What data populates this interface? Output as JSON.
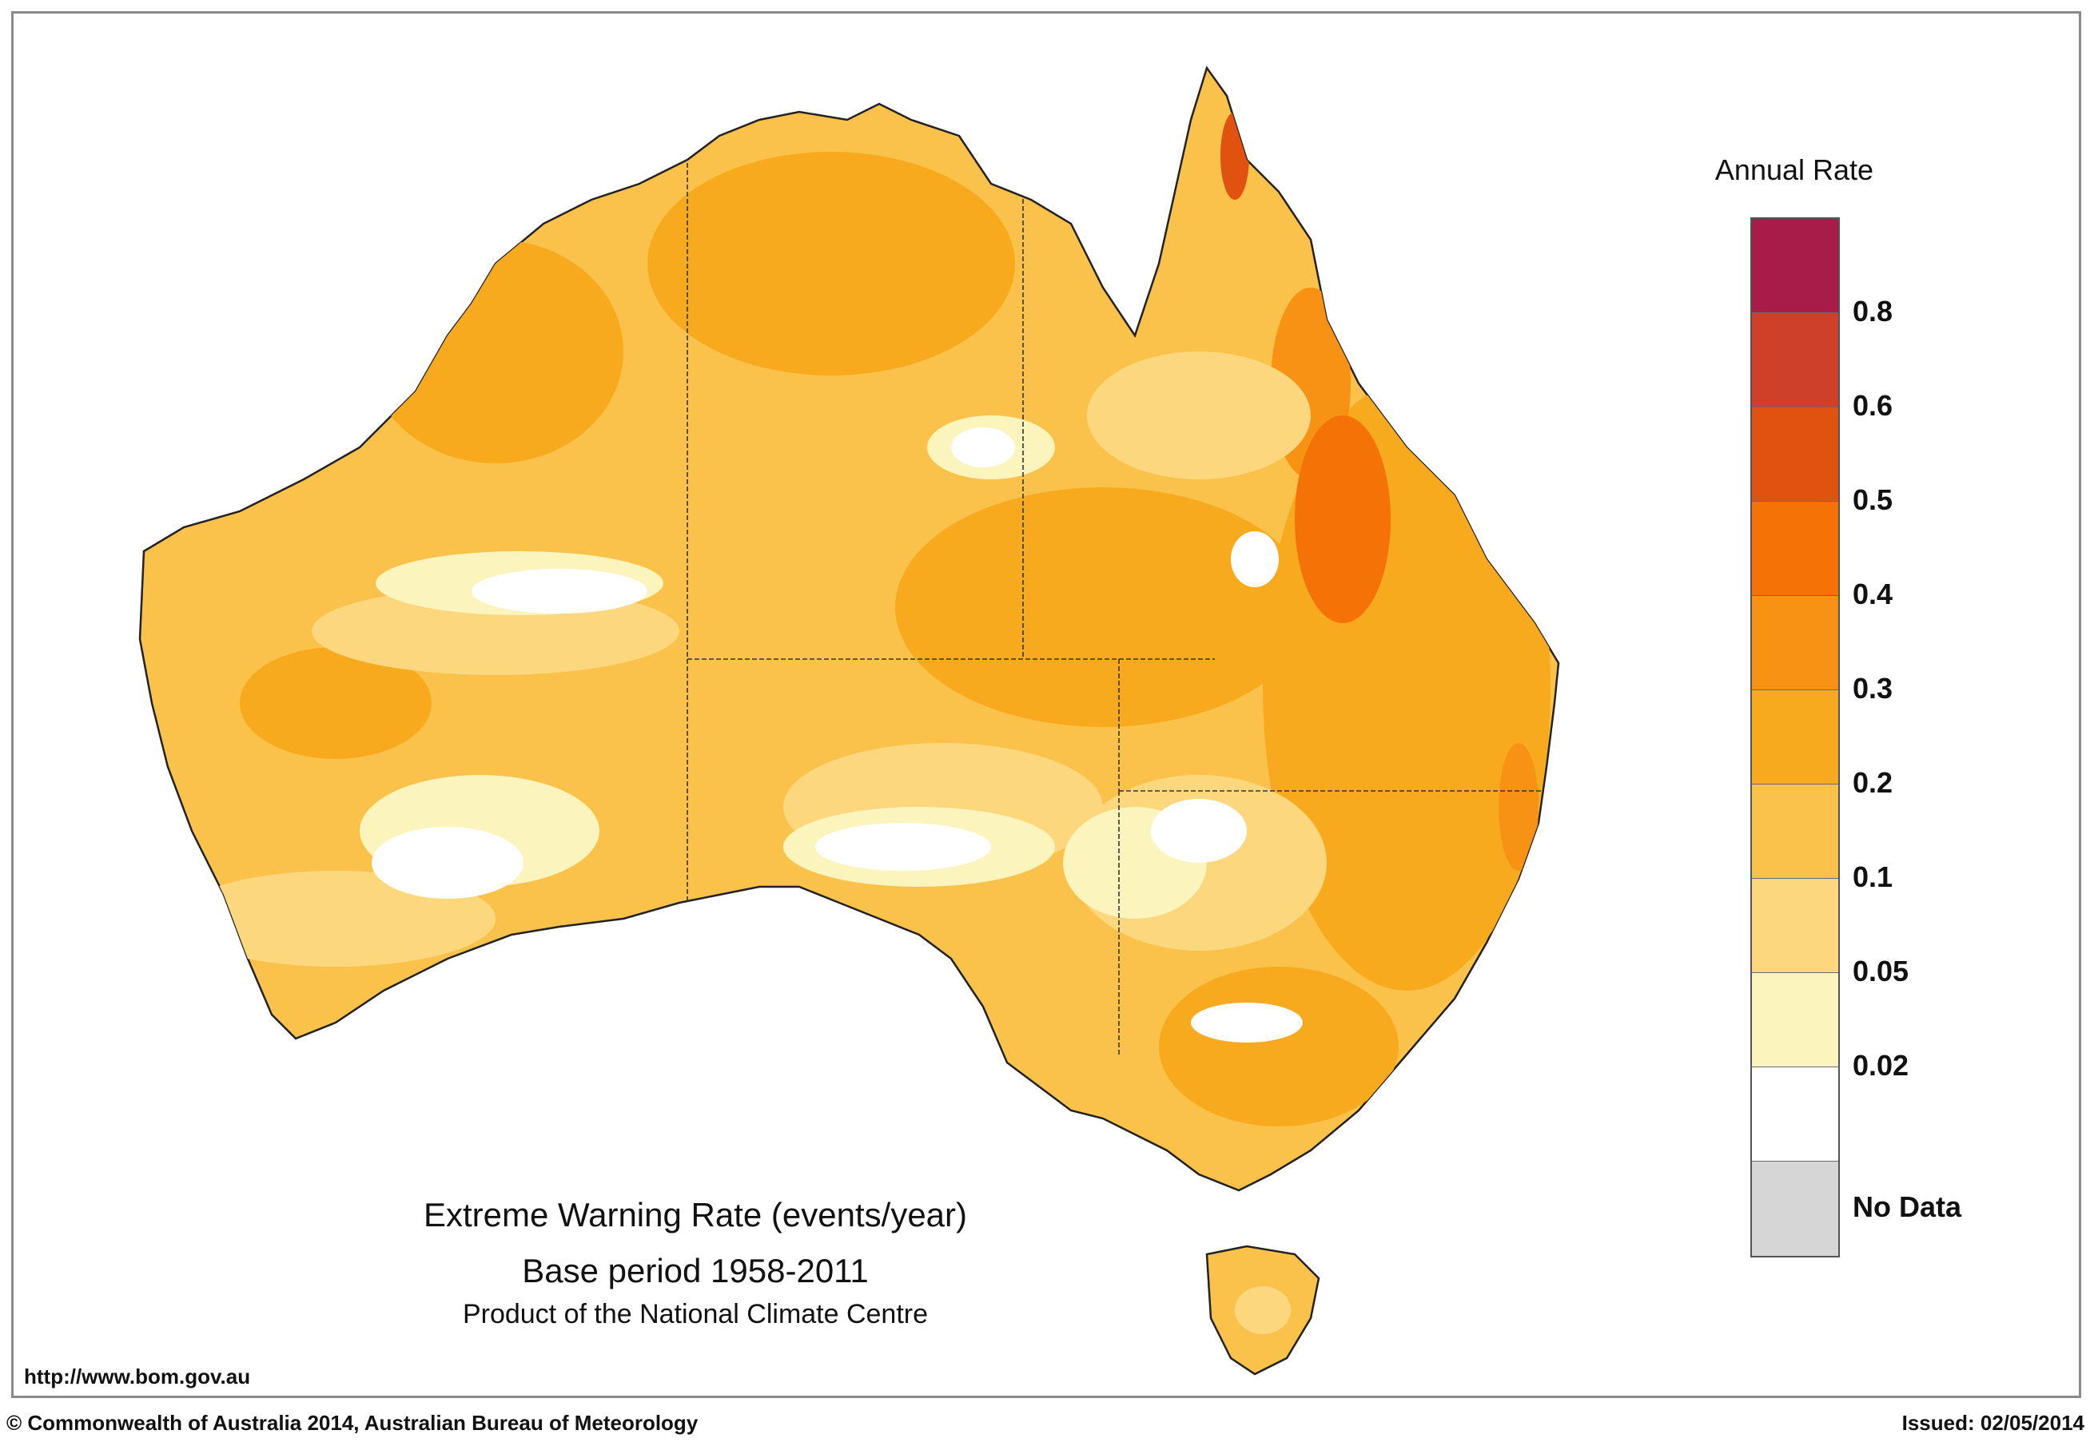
{
  "legend": {
    "title": "Annual Rate",
    "bins": [
      {
        "color": "#a81c4a",
        "label": ""
      },
      {
        "color": "#cf402a",
        "label": "0.8"
      },
      {
        "color": "#e0520f",
        "label": "0.6"
      },
      {
        "color": "#f57207",
        "label": "0.5"
      },
      {
        "color": "#f79214",
        "label": "0.4"
      },
      {
        "color": "#f8aa1e",
        "label": "0.3"
      },
      {
        "color": "#fac24a",
        "label": "0.2"
      },
      {
        "color": "#fcd77e",
        "label": "0.1"
      },
      {
        "color": "#fbf4bc",
        "label": "0.05"
      },
      {
        "color": "#ffffff",
        "label": "0.02"
      },
      {
        "color": "#d6d6d6",
        "label": "No Data"
      }
    ]
  },
  "caption": {
    "title": "Extreme Warning Rate (events/year)",
    "subtitle": "Base period 1958-2011",
    "product": "Product of the National Climate Centre"
  },
  "footer": {
    "url": "http://www.bom.gov.au",
    "copyright": "© Commonwealth of Australia 2014, Australian Bureau of Meteorology",
    "issued": "Issued: 02/05/2014"
  },
  "map": {
    "regions": [
      {
        "name": "state-border-wa",
        "kind": "border"
      },
      {
        "name": "state-border-nt-sa",
        "kind": "border"
      },
      {
        "name": "state-border-qld",
        "kind": "border"
      }
    ]
  }
}
